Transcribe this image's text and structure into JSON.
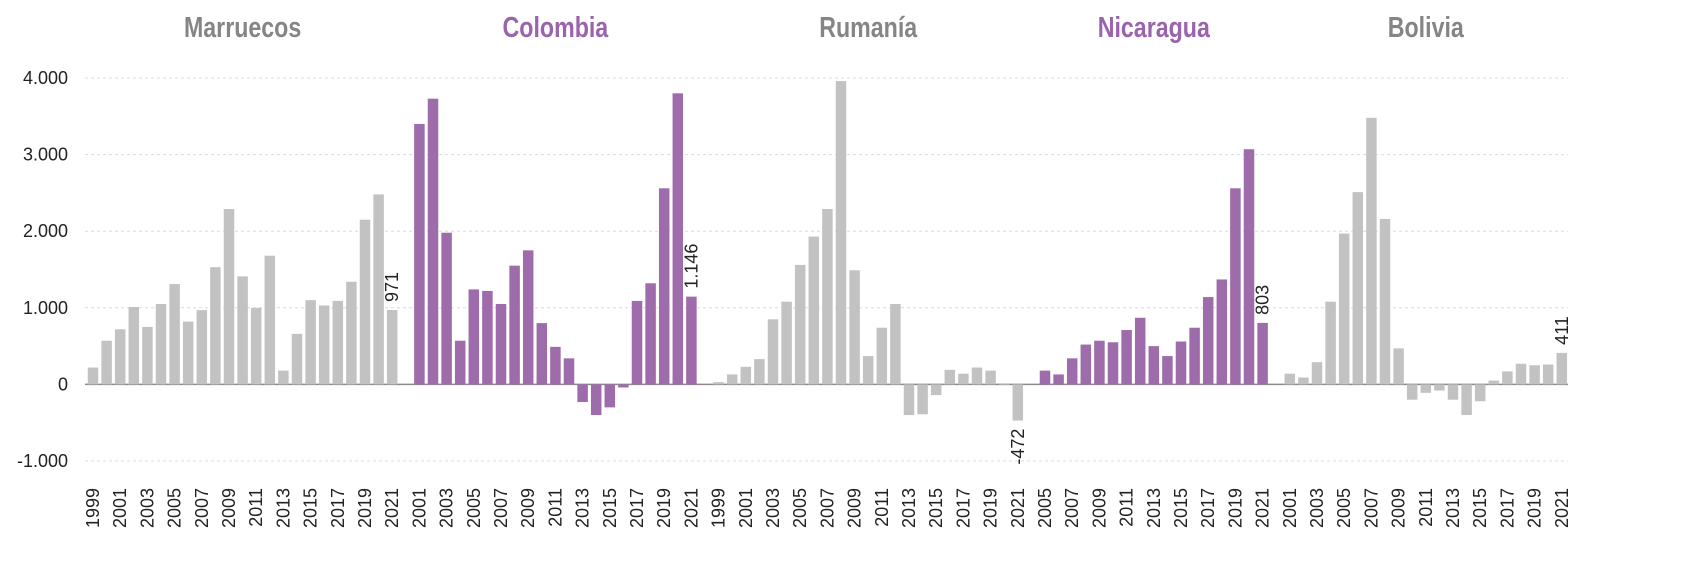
{
  "chart_data": [
    {
      "type": "bar",
      "title": "Marruecos",
      "title_color": "#858585",
      "color": "#c2c2c2",
      "categories": [
        "1999",
        null,
        "2001",
        null,
        "2003",
        null,
        "2005",
        null,
        "2007",
        null,
        "2009",
        null,
        "2011",
        null,
        "2013",
        null,
        "2015",
        null,
        "2017",
        null,
        "2019",
        null,
        "2021"
      ],
      "values": [
        220,
        570,
        720,
        1010,
        750,
        1050,
        1310,
        820,
        970,
        1530,
        2290,
        1410,
        1000,
        1680,
        180,
        660,
        1100,
        1030,
        1090,
        1340,
        2150,
        2480,
        971
      ],
      "value_labels": [
        null,
        null,
        null,
        null,
        null,
        null,
        null,
        null,
        null,
        null,
        null,
        null,
        null,
        null,
        null,
        null,
        null,
        null,
        null,
        null,
        null,
        null,
        "971"
      ],
      "ylim": [
        -1000,
        4000
      ],
      "yticks": [
        {
          "value": -1000,
          "label": "-1.000"
        },
        0,
        {
          "value": 1000,
          "label": "1.000"
        },
        {
          "value": 2000,
          "label": "2.000"
        },
        {
          "value": 3000,
          "label": "3.000"
        },
        {
          "value": 4000,
          "label": "4.000"
        }
      ],
      "grid": true
    },
    {
      "type": "bar",
      "title": "Colombia",
      "title_color": "#9b62ad",
      "color": "#9e6bab",
      "categories": [
        "2001",
        null,
        "2003",
        null,
        "2005",
        null,
        "2007",
        null,
        "2009",
        null,
        "2011",
        null,
        "2013",
        null,
        "2015",
        null,
        "2017",
        null,
        "2019",
        null,
        "2021"
      ],
      "values": [
        3400,
        3730,
        1980,
        570,
        1240,
        1220,
        1050,
        1550,
        1750,
        800,
        490,
        340,
        -230,
        -400,
        -300,
        -40,
        1090,
        1320,
        2560,
        3800,
        1146
      ],
      "value_labels": [
        null,
        null,
        null,
        null,
        null,
        null,
        null,
        null,
        null,
        null,
        null,
        null,
        null,
        null,
        null,
        null,
        null,
        null,
        null,
        null,
        "1.146"
      ]
    },
    {
      "type": "bar",
      "title": "Rumanía",
      "title_color": "#858585",
      "color": "#c2c2c2",
      "categories": [
        "1999",
        null,
        "2001",
        null,
        "2003",
        null,
        "2005",
        null,
        "2007",
        null,
        "2009",
        null,
        "2011",
        null,
        "2013",
        null,
        "2015",
        null,
        "2017",
        null,
        "2019",
        null,
        "2021"
      ],
      "values": [
        30,
        130,
        230,
        330,
        850,
        1080,
        1560,
        1930,
        2290,
        3960,
        1490,
        370,
        740,
        1050,
        -400,
        -390,
        -140,
        190,
        140,
        220,
        180,
        -10,
        -472
      ],
      "value_labels": [
        null,
        null,
        null,
        null,
        null,
        null,
        null,
        null,
        null,
        null,
        null,
        null,
        null,
        null,
        null,
        null,
        null,
        null,
        null,
        null,
        null,
        null,
        "-472"
      ]
    },
    {
      "type": "bar",
      "title": "Nicaragua",
      "title_color": "#9b62ad",
      "color": "#9e6bab",
      "categories": [
        "2005",
        null,
        "2007",
        null,
        "2009",
        null,
        "2011",
        null,
        "2013",
        null,
        "2015",
        null,
        "2017",
        null,
        "2019",
        null,
        "2021"
      ],
      "values": [
        180,
        130,
        340,
        520,
        570,
        550,
        710,
        870,
        500,
        370,
        560,
        740,
        1140,
        1370,
        2560,
        3070,
        803
      ],
      "value_labels": [
        null,
        null,
        null,
        null,
        null,
        null,
        null,
        null,
        null,
        null,
        null,
        null,
        null,
        null,
        null,
        null,
        "803"
      ]
    },
    {
      "type": "bar",
      "title": "Bolivia",
      "title_color": "#858585",
      "color": "#c2c2c2",
      "categories": [
        "2001",
        null,
        "2003",
        null,
        "2005",
        null,
        "2007",
        null,
        "2009",
        null,
        "2011",
        null,
        "2013",
        null,
        "2015",
        null,
        "2017",
        null,
        "2019",
        null,
        "2021"
      ],
      "values": [
        140,
        90,
        290,
        1080,
        1970,
        2510,
        3480,
        2160,
        470,
        -200,
        -110,
        -80,
        -200,
        -400,
        -220,
        50,
        170,
        270,
        250,
        260,
        411
      ],
      "value_labels": [
        null,
        null,
        null,
        null,
        null,
        null,
        null,
        null,
        null,
        null,
        null,
        null,
        null,
        null,
        null,
        null,
        null,
        null,
        null,
        null,
        "411"
      ]
    }
  ]
}
